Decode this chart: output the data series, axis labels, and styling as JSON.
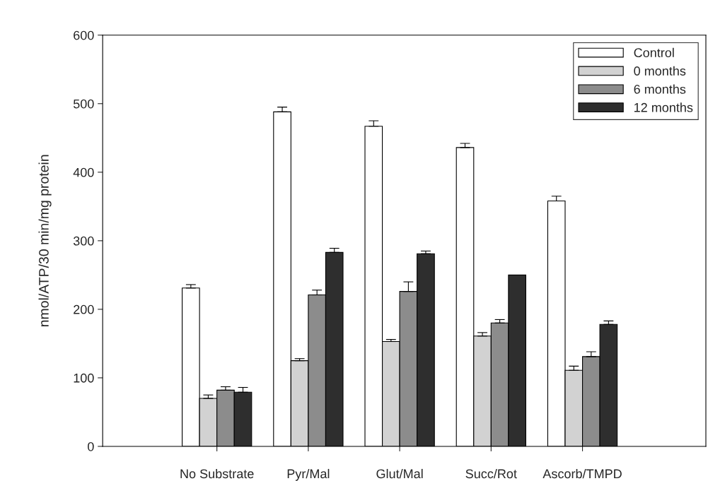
{
  "chart_data": {
    "type": "bar",
    "ylabel": "nmol/ATP/30 min/mg protein",
    "categories": [
      "No Substrate",
      "Pyr/Mal",
      "Glut/Mal",
      "Succ/Rot",
      "Ascorb/TMPD"
    ],
    "series": [
      {
        "name": "Control",
        "color": "#ffffff",
        "values": [
          231,
          488,
          467,
          436,
          358
        ],
        "errors": [
          5,
          7,
          8,
          6,
          7
        ]
      },
      {
        "name": "0 months",
        "color": "#d2d2d2",
        "values": [
          70,
          125,
          153,
          161,
          111
        ],
        "errors": [
          5,
          3,
          3,
          5,
          6
        ]
      },
      {
        "name": "6 months",
        "color": "#8c8c8c",
        "values": [
          82,
          221,
          226,
          180,
          131
        ],
        "errors": [
          5,
          7,
          14,
          5,
          7
        ]
      },
      {
        "name": "12 months",
        "color": "#2e2e2e",
        "values": [
          79,
          283,
          281,
          250,
          178
        ],
        "errors": [
          7,
          6,
          4,
          null,
          5
        ]
      }
    ],
    "ylim": [
      0,
      600
    ],
    "yticks": [
      0,
      100,
      200,
      300,
      400,
      500,
      600
    ],
    "grid": false,
    "legend": "top right"
  }
}
